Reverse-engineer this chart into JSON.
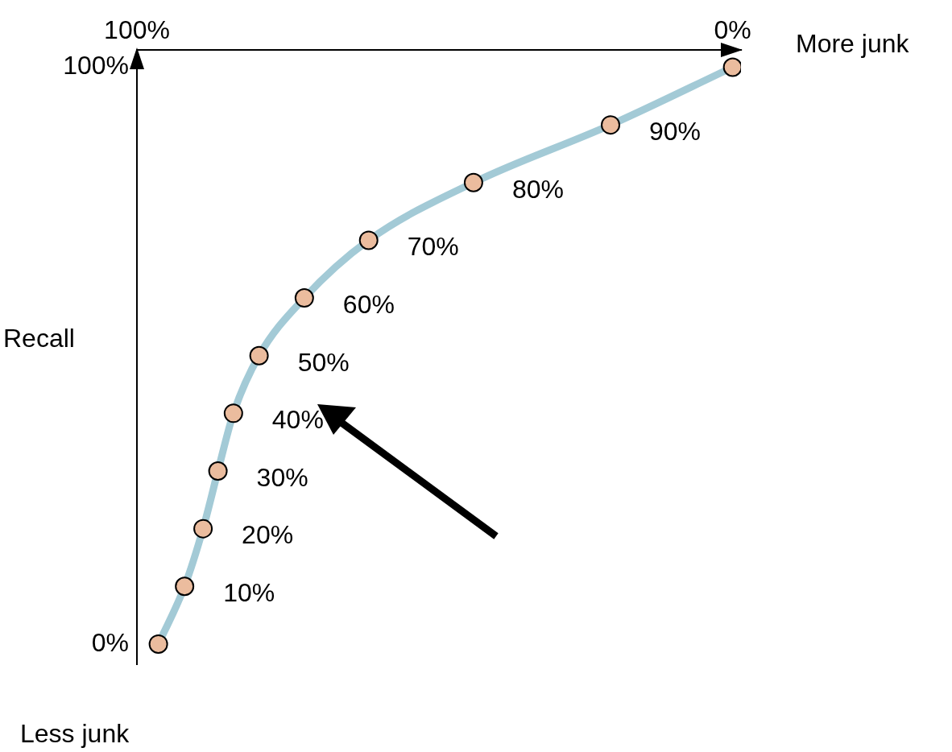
{
  "chart_data": {
    "type": "line",
    "ylabel": "Recall",
    "x": [
      96.4,
      92.0,
      88.9,
      86.4,
      83.8,
      79.5,
      71.9,
      61.1,
      43.5,
      20.5,
      0
    ],
    "series": [
      {
        "color": "#a3cad6",
        "values": [
          0,
          10,
          20,
          30,
          40,
          50,
          60,
          70,
          80,
          90,
          100
        ],
        "value_labels": [
          null,
          "10%",
          "20%",
          "30%",
          "40%",
          "50%",
          "60%",
          "70%",
          "80%",
          "90%",
          null
        ]
      }
    ],
    "xlim": [
      100,
      -1.4
    ],
    "xticks": [
      {
        "value": 100,
        "label": "100%"
      },
      {
        "value": 0,
        "label": "0%"
      }
    ],
    "ylim": [
      -3.5,
      103
    ],
    "yticks": [
      {
        "value": 0,
        "label": "0%"
      },
      {
        "value": 100,
        "label": "100%"
      }
    ],
    "marker": "circle",
    "line_style": "solid",
    "grid": false,
    "legend": false,
    "annotations": [
      "More junk",
      "Less junk"
    ]
  }
}
